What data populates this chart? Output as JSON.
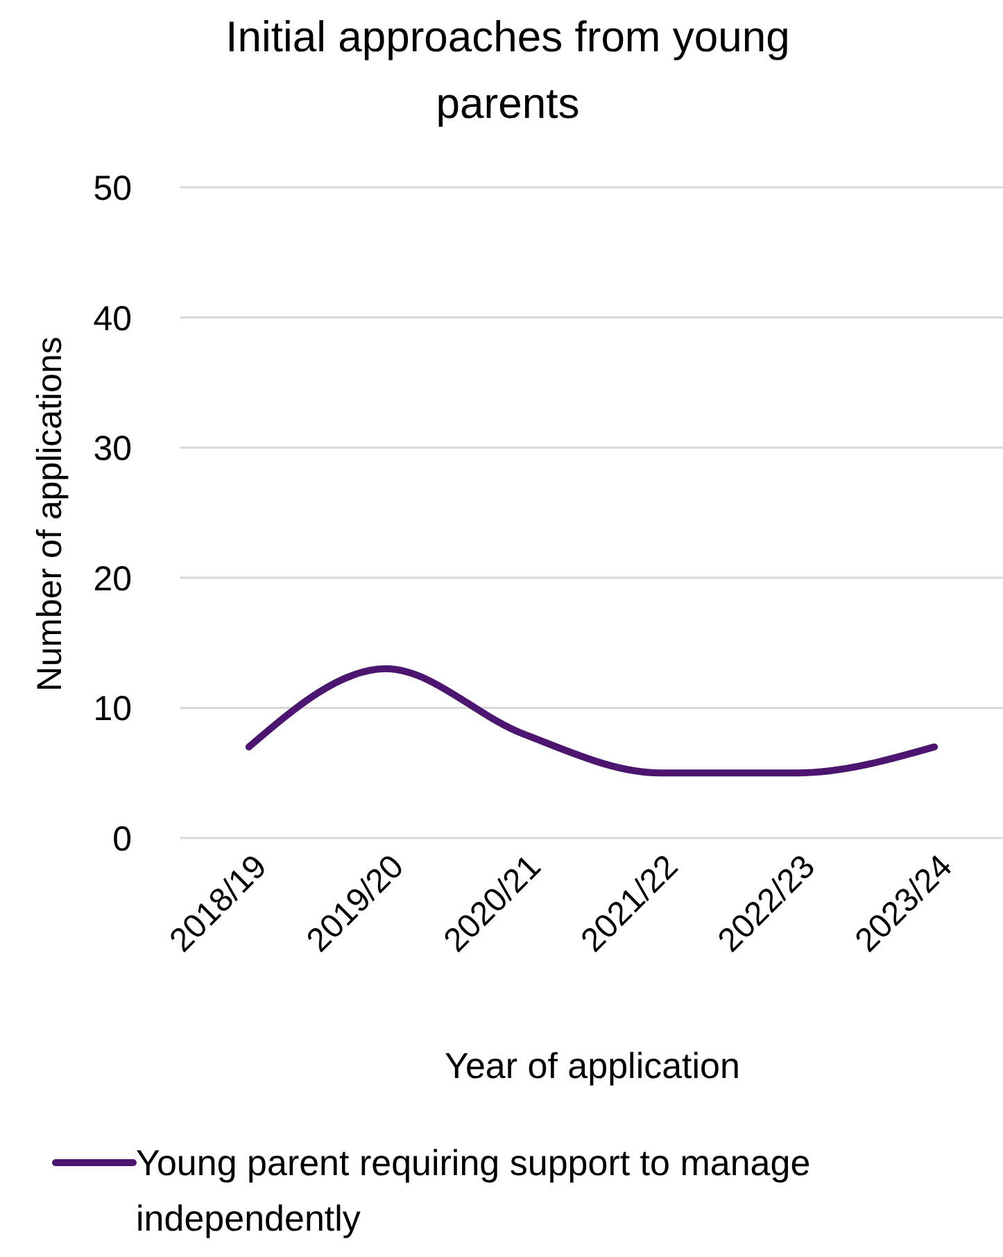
{
  "chart_data": {
    "type": "line",
    "title": "Initial approaches from young parents",
    "xlabel": "Year of application",
    "ylabel": "Number of applications",
    "categories": [
      "2018/19",
      "2019/20",
      "2020/21",
      "2021/22",
      "2022/23",
      "2023/24"
    ],
    "series": [
      {
        "name": "Young parent requiring support to manage independently",
        "color": "#4b1570",
        "values": [
          7,
          13,
          8,
          5,
          5,
          7
        ]
      }
    ],
    "ylim": [
      0,
      50
    ],
    "yticks": [
      0,
      10,
      20,
      30,
      40,
      50
    ],
    "grid": "y",
    "legend": "bottom",
    "marker": "none",
    "line_style": "solid"
  }
}
